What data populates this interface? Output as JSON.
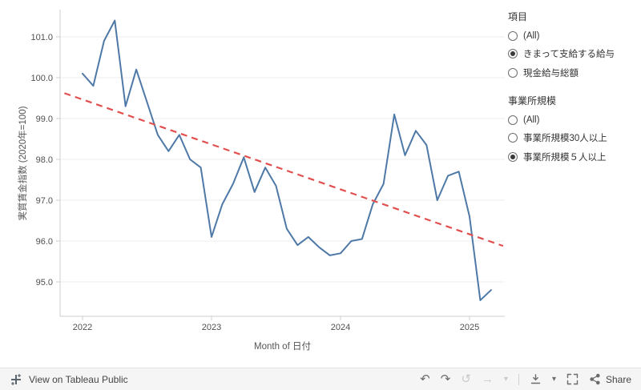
{
  "chart_data": {
    "type": "line",
    "title": "",
    "xlabel": "Month of 日付",
    "ylabel": "実質賃金指数 (2020年=100)",
    "x_ticks": [
      "2022",
      "2023",
      "2024",
      "2025"
    ],
    "y_ticks": [
      95.0,
      96.0,
      97.0,
      98.0,
      99.0,
      100.0,
      101.0
    ],
    "ylim": [
      94.2,
      101.7
    ],
    "grid": true,
    "legend": "none",
    "series": [
      {
        "name": "実質賃金指数",
        "color": "#4e79a7",
        "start": "2022-01",
        "frequency": "monthly",
        "values": [
          100.1,
          99.8,
          100.9,
          101.4,
          99.3,
          100.2,
          99.4,
          98.6,
          98.2,
          98.6,
          98.0,
          97.8,
          96.1,
          96.9,
          97.4,
          98.05,
          97.2,
          97.8,
          97.35,
          96.3,
          95.9,
          96.1,
          95.85,
          95.65,
          95.7,
          96.0,
          96.05,
          96.9,
          97.4,
          99.1,
          98.1,
          98.7,
          98.35,
          97.0,
          97.6,
          97.7,
          96.6,
          94.55,
          94.8
        ]
      }
    ],
    "trend_line": {
      "color": "#e1504f",
      "style": "dashed",
      "points": [
        {
          "year": 2021.86,
          "value": 99.62
        },
        {
          "year": 2025.26,
          "value": 95.88
        }
      ]
    }
  },
  "filters": {
    "sections": [
      {
        "title": "項目",
        "options": [
          {
            "label": "(All)",
            "selected": false
          },
          {
            "label": "きまって支給する給与",
            "selected": true
          },
          {
            "label": "現金給与総額",
            "selected": false
          }
        ]
      },
      {
        "title": "事業所規模",
        "options": [
          {
            "label": "(All)",
            "selected": false
          },
          {
            "label": "事業所規模30人以上",
            "selected": false
          },
          {
            "label": "事業所規模５人以上",
            "selected": true
          }
        ]
      }
    ]
  },
  "toolbar": {
    "brand_label": "View on Tableau Public",
    "share_label": "Share",
    "icons": [
      "tableau-logo",
      "undo",
      "redo",
      "replay",
      "forward",
      "caret-down",
      "download",
      "fullscreen",
      "share"
    ]
  }
}
